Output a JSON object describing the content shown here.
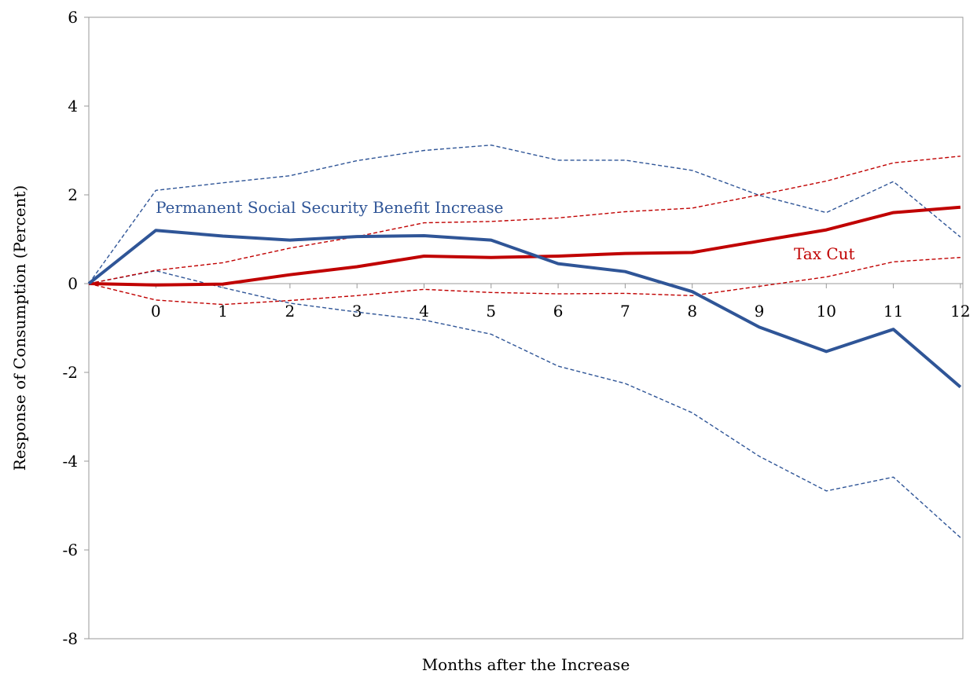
{
  "chart_data": {
    "type": "line",
    "xlabel": "Months after the Increase",
    "ylabel": "Response of Consumption (Percent)",
    "ylim": [
      -8,
      6
    ],
    "yticks": [
      "6",
      "4",
      "2",
      "0",
      "-2",
      "-4",
      "-6",
      "-8"
    ],
    "x": [
      "start",
      0,
      1,
      2,
      3,
      4,
      5,
      6,
      7,
      8,
      9,
      10,
      11,
      12
    ],
    "xtick_labels": [
      "0",
      "1",
      "2",
      "3",
      "4",
      "5",
      "6",
      "7",
      "8",
      "9",
      "10",
      "11",
      "12"
    ],
    "grid": false,
    "series": [
      {
        "name": "Permanent Social Security Benefit Increase",
        "color": "#2f5597",
        "style": "solid",
        "values": [
          0,
          1.2,
          1.07,
          0.98,
          1.06,
          1.08,
          0.98,
          0.45,
          0.27,
          -0.18,
          -0.98,
          -1.53,
          -1.03,
          -2.33
        ]
      },
      {
        "role": "upper",
        "color": "#2f5597",
        "style": "dashed",
        "values": [
          0,
          2.1,
          2.27,
          2.43,
          2.77,
          3.0,
          3.12,
          2.78,
          2.78,
          2.55,
          1.99,
          1.6,
          2.3,
          1.05
        ]
      },
      {
        "role": "lower",
        "color": "#2f5597",
        "style": "dashed",
        "values": [
          0,
          0.29,
          -0.09,
          -0.44,
          -0.64,
          -0.82,
          -1.14,
          -1.86,
          -2.25,
          -2.91,
          -3.89,
          -4.67,
          -4.36,
          -5.72
        ]
      },
      {
        "name": "Tax Cut",
        "color": "#c00000",
        "style": "solid",
        "values": [
          0,
          -0.03,
          -0.01,
          0.2,
          0.38,
          0.62,
          0.59,
          0.62,
          0.68,
          0.7,
          0.96,
          1.21,
          1.6,
          1.72
        ]
      },
      {
        "role": "upper",
        "color": "#c00000",
        "style": "dashed",
        "values": [
          0,
          0.3,
          0.47,
          0.8,
          1.06,
          1.37,
          1.4,
          1.48,
          1.62,
          1.7,
          2.0,
          2.31,
          2.72,
          2.87
        ]
      },
      {
        "role": "lower",
        "color": "#c00000",
        "style": "dashed",
        "values": [
          0,
          -0.37,
          -0.47,
          -0.38,
          -0.27,
          -0.13,
          -0.2,
          -0.23,
          -0.22,
          -0.27,
          -0.06,
          0.15,
          0.49,
          0.59
        ]
      }
    ],
    "annotations": [
      {
        "text": "Permanent Social Security Benefit Increase",
        "color": "#2f5597"
      },
      {
        "text": "Tax Cut",
        "color": "#c00000"
      }
    ]
  }
}
